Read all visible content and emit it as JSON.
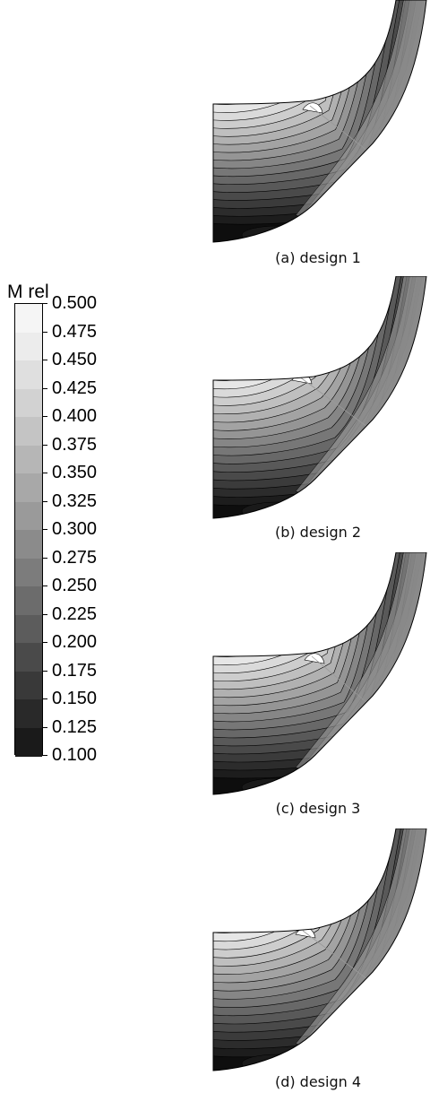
{
  "legend": {
    "title": "M rel",
    "levels": [
      {
        "label": "0.500",
        "color": "#f5f5f5"
      },
      {
        "label": "0.475",
        "color": "#ececec"
      },
      {
        "label": "0.450",
        "color": "#dfdfdf"
      },
      {
        "label": "0.425",
        "color": "#d2d2d2"
      },
      {
        "label": "0.400",
        "color": "#c4c4c4"
      },
      {
        "label": "0.375",
        "color": "#b6b6b6"
      },
      {
        "label": "0.350",
        "color": "#a8a8a8"
      },
      {
        "label": "0.325",
        "color": "#9a9a9a"
      },
      {
        "label": "0.300",
        "color": "#8b8b8b"
      },
      {
        "label": "0.275",
        "color": "#7c7c7c"
      },
      {
        "label": "0.250",
        "color": "#6c6c6c"
      },
      {
        "label": "0.225",
        "color": "#5c5c5c"
      },
      {
        "label": "0.200",
        "color": "#4a4a4a"
      },
      {
        "label": "0.175",
        "color": "#393939"
      },
      {
        "label": "0.150",
        "color": "#292929"
      },
      {
        "label": "0.125",
        "color": "#1a1a1a"
      },
      {
        "label": "0.100",
        "color": "#0b0b0b"
      }
    ]
  },
  "panels": [
    {
      "caption": "(a) design 1"
    },
    {
      "caption": "(b) design 2"
    },
    {
      "caption": "(c) design 3"
    },
    {
      "caption": "(d) design 4"
    }
  ]
}
